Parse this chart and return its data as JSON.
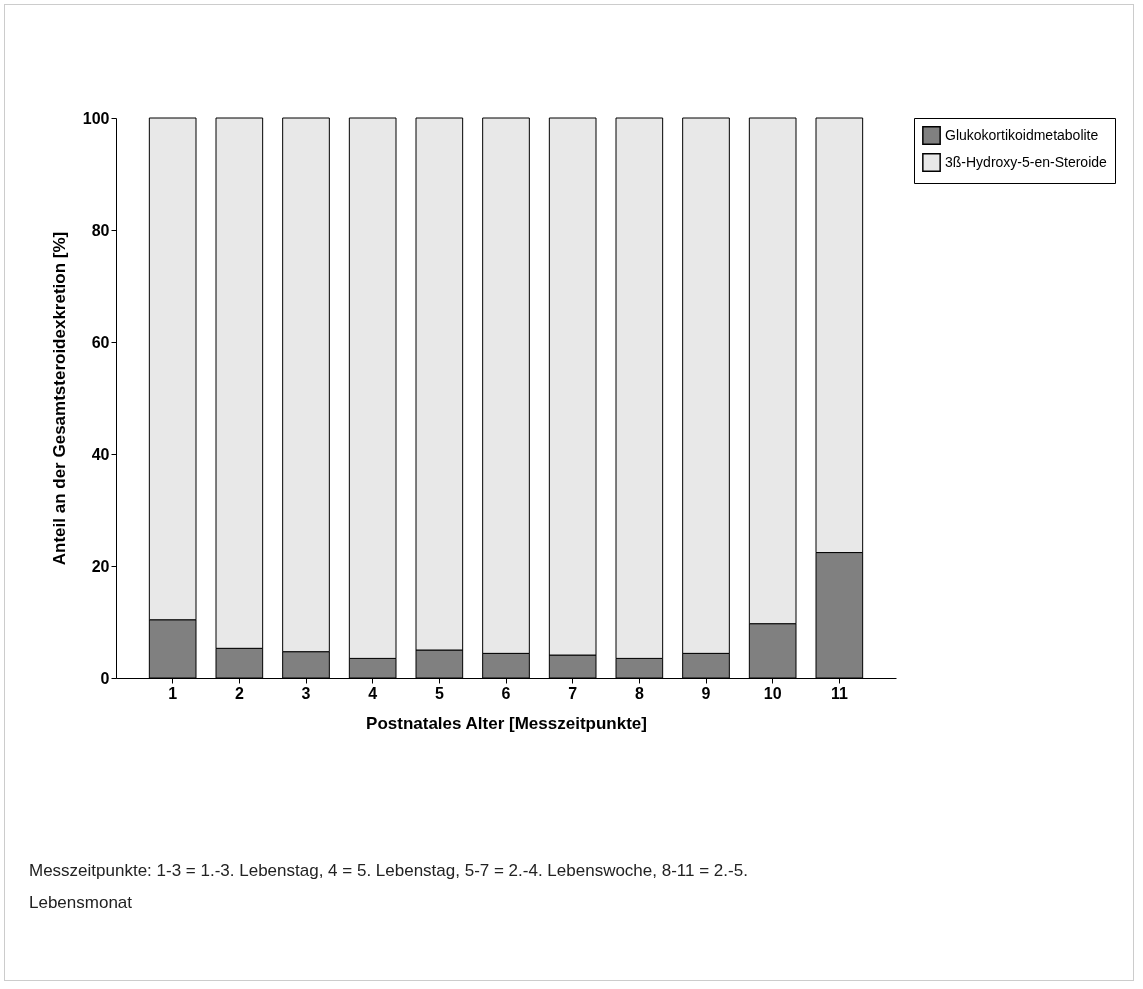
{
  "chart_data": {
    "type": "bar",
    "stacked": true,
    "xlabel": "Postnatales Alter  [Messzeitpunkte]",
    "ylabel": "Anteil an der Gesamtsteroidexkretion  [%]",
    "categories": [
      "1",
      "2",
      "3",
      "4",
      "5",
      "6",
      "7",
      "8",
      "9",
      "10",
      "11"
    ],
    "series": [
      {
        "name": "Glukokortikoidmetabolite",
        "color": "#808080",
        "values": [
          10.4,
          5.3,
          4.7,
          3.5,
          5.0,
          4.4,
          4.1,
          3.5,
          4.4,
          9.7,
          22.4
        ]
      },
      {
        "name": "3ß-Hydroxy-5-en-Steroide",
        "color": "#e8e8e8",
        "values": [
          89.6,
          94.7,
          95.3,
          96.5,
          95.0,
          95.6,
          95.9,
          96.5,
          95.6,
          90.3,
          77.6
        ]
      }
    ],
    "ylim": [
      0,
      100
    ],
    "yticks": [
      0,
      20,
      40,
      60,
      80,
      100
    ],
    "grid": false,
    "legend": "right",
    "annotations": [
      "Messzeitpunkte: 1-3 = 1.-3. Lebenstag, 4 = 5. Lebenstag, 5-7 = 2.-4. Lebenswoche, 8-11 = 2.-5. Lebensmonat"
    ]
  }
}
